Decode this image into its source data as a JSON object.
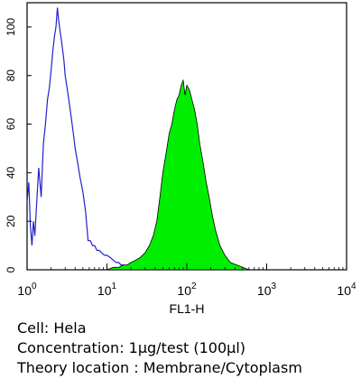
{
  "chart_data": {
    "type": "area",
    "xlabel": "FL1-H",
    "ylabel": "",
    "xscale": "log",
    "xlim": [
      1,
      10000
    ],
    "ylim": [
      0,
      110
    ],
    "x_ticks": [
      {
        "value": 1,
        "base": "10",
        "exp": "0"
      },
      {
        "value": 10,
        "base": "10",
        "exp": "1"
      },
      {
        "value": 100,
        "base": "10",
        "exp": "2"
      },
      {
        "value": 1000,
        "base": "10",
        "exp": "3"
      },
      {
        "value": 10000,
        "base": "10",
        "exp": "4"
      }
    ],
    "y_ticks": [
      0,
      20,
      40,
      60,
      80,
      100
    ],
    "series": [
      {
        "style": "outline",
        "color": "#2222cc",
        "x": [
          1.0,
          1.05,
          1.1,
          1.15,
          1.2,
          1.25,
          1.3,
          1.4,
          1.5,
          1.6,
          1.7,
          1.8,
          1.9,
          2.0,
          2.1,
          2.2,
          2.3,
          2.4,
          2.5,
          2.6,
          2.7,
          2.8,
          2.9,
          3.0,
          3.2,
          3.4,
          3.6,
          3.8,
          4.0,
          4.3,
          4.6,
          5.0,
          5.4,
          5.8,
          6.2,
          6.6,
          7.0,
          7.5,
          8.0,
          8.6,
          9.3,
          10.0,
          11.0,
          12.0,
          13.0,
          14.0,
          15.0,
          16.0,
          17.0,
          18.0
        ],
        "y": [
          28,
          36,
          18,
          10,
          20,
          14,
          24,
          42,
          30,
          52,
          60,
          70,
          75,
          82,
          90,
          96,
          100,
          108,
          102,
          98,
          94,
          90,
          86,
          80,
          74,
          68,
          62,
          56,
          50,
          44,
          38,
          32,
          24,
          12,
          12,
          10,
          10,
          8,
          8,
          7,
          6,
          6,
          5,
          4,
          3,
          3,
          2,
          2,
          1,
          0
        ]
      },
      {
        "style": "filled",
        "color": "#00ee00",
        "x": [
          10,
          12,
          14,
          16,
          18,
          20,
          23,
          26,
          30,
          34,
          38,
          42,
          46,
          50,
          55,
          60,
          65,
          70,
          75,
          80,
          85,
          90,
          95,
          100,
          108,
          116,
          125,
          135,
          145,
          160,
          175,
          190,
          210,
          230,
          260,
          300,
          350,
          420,
          500,
          600
        ],
        "y": [
          0,
          1,
          1,
          2,
          2,
          3,
          4,
          5,
          7,
          10,
          14,
          20,
          30,
          40,
          48,
          56,
          60,
          66,
          70,
          72,
          76,
          78,
          72,
          76,
          74,
          70,
          66,
          60,
          52,
          44,
          36,
          30,
          22,
          16,
          10,
          6,
          3,
          2,
          1,
          0
        ]
      }
    ]
  },
  "caption": {
    "cell": "Cell: Hela",
    "concentration": "Concentration: 1μg/test (100μl)",
    "location": "Theory location : Membrane/Cytoplasm"
  }
}
